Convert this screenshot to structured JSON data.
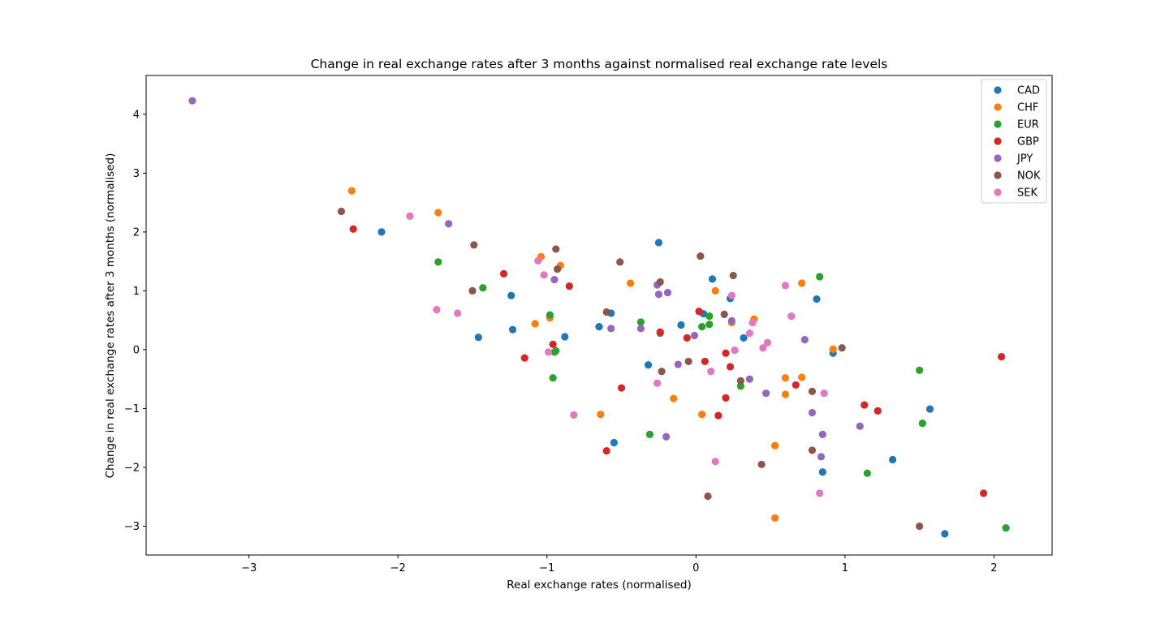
{
  "chart_data": {
    "type": "scatter",
    "title": "Change in real exchange rates after 3 months against normalised real exchange rate levels",
    "xlabel": "Real exchange rates (normalised)",
    "ylabel": "Change in real exchange rates after 3 months (normalised)",
    "xlim": [
      -3.69,
      2.39
    ],
    "ylim": [
      -3.49,
      4.66
    ],
    "xticks": [
      -3,
      -2,
      -1,
      0,
      1,
      2
    ],
    "yticks": [
      -3,
      -2,
      -1,
      0,
      1,
      2,
      3,
      4
    ],
    "xtick_labels": [
      "−3",
      "−2",
      "−1",
      "0",
      "1",
      "2"
    ],
    "ytick_labels": [
      "−3",
      "−2",
      "−1",
      "0",
      "1",
      "2",
      "3",
      "4"
    ],
    "grid": false,
    "legend_position": "top-right",
    "series": [
      {
        "name": "CAD",
        "color": "#1f77b4",
        "points": [
          [
            -2.11,
            2.0
          ],
          [
            -1.46,
            0.21
          ],
          [
            -1.24,
            0.92
          ],
          [
            -1.23,
            0.34
          ],
          [
            -0.88,
            0.22
          ],
          [
            -0.65,
            0.39
          ],
          [
            -0.57,
            0.62
          ],
          [
            -0.55,
            -1.58
          ],
          [
            -0.32,
            -0.26
          ],
          [
            -0.25,
            1.82
          ],
          [
            -0.1,
            0.42
          ],
          [
            0.05,
            0.61
          ],
          [
            0.11,
            1.2
          ],
          [
            0.32,
            0.2
          ],
          [
            0.23,
            0.87
          ],
          [
            0.81,
            0.86
          ],
          [
            0.85,
            -2.08
          ],
          [
            0.92,
            -0.06
          ],
          [
            1.32,
            -1.87
          ],
          [
            1.57,
            -1.01
          ],
          [
            1.67,
            -3.13
          ]
        ]
      },
      {
        "name": "CHF",
        "color": "#ff7f0e",
        "points": [
          [
            -2.31,
            2.7
          ],
          [
            -1.73,
            2.33
          ],
          [
            -1.04,
            1.58
          ],
          [
            -0.91,
            1.43
          ],
          [
            -1.08,
            0.44
          ],
          [
            -0.98,
            0.54
          ],
          [
            -0.64,
            -1.1
          ],
          [
            -0.44,
            1.13
          ],
          [
            -0.15,
            -0.83
          ],
          [
            0.04,
            -1.1
          ],
          [
            0.13,
            1.0
          ],
          [
            0.24,
            0.46
          ],
          [
            0.39,
            0.52
          ],
          [
            0.53,
            -1.63
          ],
          [
            0.53,
            -2.86
          ],
          [
            0.6,
            -0.48
          ],
          [
            0.6,
            -0.76
          ],
          [
            0.71,
            1.13
          ],
          [
            0.71,
            -0.47
          ],
          [
            0.92,
            0.01
          ]
        ]
      },
      {
        "name": "EUR",
        "color": "#2ca02c",
        "points": [
          [
            -1.73,
            1.49
          ],
          [
            -1.43,
            1.05
          ],
          [
            -0.98,
            0.59
          ],
          [
            -0.96,
            -0.48
          ],
          [
            -0.94,
            -0.02
          ],
          [
            -0.95,
            -0.04
          ],
          [
            -0.37,
            0.47
          ],
          [
            -0.31,
            -1.44
          ],
          [
            -0.24,
            0.28
          ],
          [
            0.04,
            0.39
          ],
          [
            0.09,
            0.57
          ],
          [
            0.09,
            0.43
          ],
          [
            0.3,
            -0.62
          ],
          [
            0.83,
            1.24
          ],
          [
            1.15,
            -2.1
          ],
          [
            1.5,
            -0.35
          ],
          [
            1.52,
            -1.25
          ],
          [
            2.08,
            -3.03
          ]
        ]
      },
      {
        "name": "GBP",
        "color": "#d62728",
        "points": [
          [
            -2.3,
            2.05
          ],
          [
            -1.29,
            1.29
          ],
          [
            -1.15,
            -0.14
          ],
          [
            -0.96,
            0.09
          ],
          [
            -0.85,
            1.08
          ],
          [
            -0.6,
            -1.72
          ],
          [
            -0.5,
            -0.65
          ],
          [
            -0.24,
            0.3
          ],
          [
            -0.06,
            0.2
          ],
          [
            0.02,
            0.65
          ],
          [
            0.06,
            -0.2
          ],
          [
            0.15,
            -1.12
          ],
          [
            0.2,
            -0.06
          ],
          [
            0.2,
            -0.82
          ],
          [
            0.23,
            -0.29
          ],
          [
            0.67,
            -0.6
          ],
          [
            1.13,
            -0.94
          ],
          [
            1.22,
            -1.04
          ],
          [
            1.93,
            -2.44
          ],
          [
            2.05,
            -0.12
          ]
        ]
      },
      {
        "name": "JPY",
        "color": "#9467bd",
        "points": [
          [
            -3.38,
            4.23
          ],
          [
            -1.66,
            2.14
          ],
          [
            -0.95,
            1.19
          ],
          [
            -0.57,
            0.36
          ],
          [
            -0.37,
            0.36
          ],
          [
            -0.26,
            1.1
          ],
          [
            -0.25,
            0.94
          ],
          [
            -0.19,
            0.97
          ],
          [
            -0.2,
            -1.48
          ],
          [
            -0.12,
            -0.25
          ],
          [
            -0.01,
            0.24
          ],
          [
            0.24,
            0.49
          ],
          [
            0.36,
            -0.5
          ],
          [
            0.47,
            -0.74
          ],
          [
            0.73,
            0.17
          ],
          [
            0.78,
            -1.07
          ],
          [
            0.85,
            -1.44
          ],
          [
            0.84,
            -1.82
          ],
          [
            1.1,
            -1.3
          ]
        ]
      },
      {
        "name": "NOK",
        "color": "#8c564b",
        "points": [
          [
            -2.38,
            2.35
          ],
          [
            -1.49,
            1.78
          ],
          [
            -1.5,
            1.0
          ],
          [
            -0.94,
            1.71
          ],
          [
            -0.93,
            1.37
          ],
          [
            -0.6,
            0.64
          ],
          [
            -0.51,
            1.49
          ],
          [
            -0.24,
            1.15
          ],
          [
            -0.23,
            -0.37
          ],
          [
            -0.05,
            -0.2
          ],
          [
            0.03,
            1.59
          ],
          [
            0.08,
            -2.49
          ],
          [
            0.19,
            0.6
          ],
          [
            0.25,
            1.26
          ],
          [
            0.3,
            -0.53
          ],
          [
            0.44,
            -1.95
          ],
          [
            0.78,
            -0.71
          ],
          [
            0.78,
            -1.71
          ],
          [
            0.98,
            0.03
          ],
          [
            1.5,
            -3.0
          ]
        ]
      },
      {
        "name": "SEK",
        "color": "#e377c2",
        "points": [
          [
            -1.92,
            2.27
          ],
          [
            -1.74,
            0.68
          ],
          [
            -1.6,
            0.62
          ],
          [
            -1.06,
            1.51
          ],
          [
            -1.02,
            1.27
          ],
          [
            -0.99,
            -0.04
          ],
          [
            -0.82,
            -1.11
          ],
          [
            -0.26,
            -0.57
          ],
          [
            0.1,
            -0.37
          ],
          [
            0.13,
            -1.9
          ],
          [
            0.24,
            0.92
          ],
          [
            0.26,
            -0.01
          ],
          [
            0.36,
            0.28
          ],
          [
            0.38,
            0.46
          ],
          [
            0.45,
            0.03
          ],
          [
            0.48,
            0.12
          ],
          [
            0.6,
            1.09
          ],
          [
            0.64,
            0.57
          ],
          [
            0.83,
            -2.44
          ],
          [
            0.86,
            -0.74
          ]
        ]
      }
    ]
  }
}
